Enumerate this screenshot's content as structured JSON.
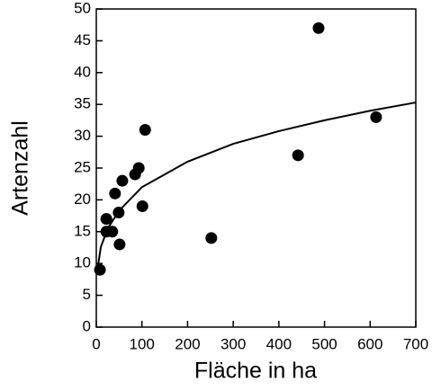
{
  "chart_data": {
    "type": "scatter",
    "x_label": "Fläche in ha",
    "y_label": "Artenzahl",
    "x": [
      8,
      22,
      22,
      35,
      41,
      49,
      51,
      57,
      85,
      93,
      101,
      107,
      252,
      442,
      487,
      613
    ],
    "values": [
      9,
      17,
      15,
      15,
      21,
      18,
      13,
      23,
      24,
      25,
      19,
      31,
      14,
      27,
      47,
      33
    ],
    "color": "#000000",
    "fit": {
      "x": [
        3,
        10,
        25,
        50,
        100,
        200,
        300,
        400,
        500,
        600,
        700
      ],
      "values": [
        9.3,
        12.6,
        15.5,
        18.3,
        22.0,
        26.0,
        28.8,
        30.8,
        32.5,
        34.0,
        35.3
      ]
    },
    "xlim": [
      0,
      700
    ],
    "xticks": [
      0,
      100,
      200,
      300,
      400,
      500,
      600,
      700
    ],
    "ylim": [
      0,
      50
    ],
    "yticks": [
      0,
      5,
      10,
      15,
      20,
      25,
      30,
      35,
      40,
      45,
      50
    ]
  }
}
